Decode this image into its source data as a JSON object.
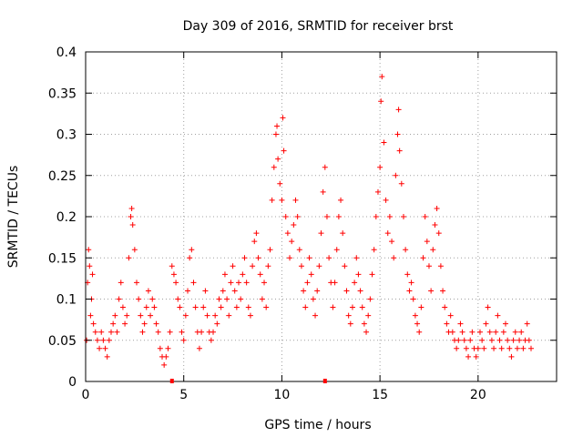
{
  "chart_data": {
    "type": "scatter",
    "title": "Day 309 of 2016, SRMTID for receiver brst",
    "xlabel": "GPS time / hours",
    "ylabel": "SRMTID / TECUs",
    "xlim": [
      0,
      24
    ],
    "ylim": [
      0,
      0.4
    ],
    "xticks": [
      0,
      5,
      10,
      15,
      20
    ],
    "xtick_labels": [
      "0",
      "5",
      "10",
      "15",
      "20"
    ],
    "yticks": [
      0,
      0.05,
      0.1,
      0.15,
      0.2,
      0.25,
      0.3,
      0.35,
      0.4
    ],
    "ytick_labels": [
      "0",
      "0.05",
      "0.1",
      "0.15",
      "0.2",
      "0.25",
      "0.3",
      "0.35",
      "0.4"
    ],
    "grid": true,
    "marker": "+",
    "colors": {
      "points": "#ff0000",
      "axis": "#000000",
      "grid": "#a0a0a0"
    },
    "series": [
      {
        "name": "SRMTID",
        "points": [
          [
            0.05,
            0.05
          ],
          [
            0.1,
            0.12
          ],
          [
            0.15,
            0.16
          ],
          [
            0.2,
            0.14
          ],
          [
            0.25,
            0.08
          ],
          [
            0.3,
            0.1
          ],
          [
            0.35,
            0.13
          ],
          [
            0.4,
            0.07
          ],
          [
            0.5,
            0.06
          ],
          [
            0.6,
            0.05
          ],
          [
            0.7,
            0.04
          ],
          [
            0.8,
            0.06
          ],
          [
            0.9,
            0.05
          ],
          [
            1.0,
            0.04
          ],
          [
            1.1,
            0.03
          ],
          [
            1.2,
            0.05
          ],
          [
            1.3,
            0.06
          ],
          [
            1.4,
            0.07
          ],
          [
            1.5,
            0.08
          ],
          [
            1.6,
            0.06
          ],
          [
            1.7,
            0.1
          ],
          [
            1.8,
            0.12
          ],
          [
            1.9,
            0.09
          ],
          [
            2.0,
            0.07
          ],
          [
            2.1,
            0.08
          ],
          [
            2.2,
            0.15
          ],
          [
            2.3,
            0.2
          ],
          [
            2.35,
            0.21
          ],
          [
            2.4,
            0.19
          ],
          [
            2.5,
            0.16
          ],
          [
            2.6,
            0.12
          ],
          [
            2.7,
            0.1
          ],
          [
            2.8,
            0.08
          ],
          [
            2.9,
            0.06
          ],
          [
            3.0,
            0.07
          ],
          [
            3.1,
            0.09
          ],
          [
            3.2,
            0.11
          ],
          [
            3.3,
            0.08
          ],
          [
            3.4,
            0.1
          ],
          [
            3.5,
            0.09
          ],
          [
            3.6,
            0.07
          ],
          [
            3.7,
            0.06
          ],
          [
            3.8,
            0.04
          ],
          [
            3.9,
            0.03
          ],
          [
            4.0,
            0.02
          ],
          [
            4.1,
            0.03
          ],
          [
            4.2,
            0.04
          ],
          [
            4.3,
            0.06
          ],
          [
            4.4,
            0.14
          ],
          [
            4.5,
            0.13
          ],
          [
            4.6,
            0.12
          ],
          [
            4.7,
            0.1
          ],
          [
            4.8,
            0.09
          ],
          [
            4.9,
            0.06
          ],
          [
            5.0,
            0.05
          ],
          [
            5.1,
            0.08
          ],
          [
            5.2,
            0.11
          ],
          [
            5.3,
            0.15
          ],
          [
            5.4,
            0.16
          ],
          [
            5.5,
            0.12
          ],
          [
            5.6,
            0.09
          ],
          [
            5.7,
            0.06
          ],
          [
            5.8,
            0.04
          ],
          [
            5.9,
            0.06
          ],
          [
            6.0,
            0.09
          ],
          [
            6.1,
            0.11
          ],
          [
            6.2,
            0.08
          ],
          [
            6.3,
            0.06
          ],
          [
            6.4,
            0.05
          ],
          [
            6.5,
            0.06
          ],
          [
            6.6,
            0.08
          ],
          [
            6.7,
            0.07
          ],
          [
            6.8,
            0.1
          ],
          [
            6.9,
            0.09
          ],
          [
            7.0,
            0.11
          ],
          [
            7.1,
            0.13
          ],
          [
            7.2,
            0.1
          ],
          [
            7.3,
            0.08
          ],
          [
            7.4,
            0.12
          ],
          [
            7.5,
            0.14
          ],
          [
            7.6,
            0.11
          ],
          [
            7.7,
            0.09
          ],
          [
            7.8,
            0.12
          ],
          [
            7.9,
            0.1
          ],
          [
            8.0,
            0.13
          ],
          [
            8.1,
            0.15
          ],
          [
            8.2,
            0.12
          ],
          [
            8.3,
            0.09
          ],
          [
            8.4,
            0.08
          ],
          [
            8.5,
            0.14
          ],
          [
            8.6,
            0.17
          ],
          [
            8.7,
            0.18
          ],
          [
            8.8,
            0.15
          ],
          [
            8.9,
            0.13
          ],
          [
            9.0,
            0.1
          ],
          [
            9.1,
            0.12
          ],
          [
            9.2,
            0.09
          ],
          [
            9.3,
            0.14
          ],
          [
            9.4,
            0.16
          ],
          [
            9.5,
            0.22
          ],
          [
            9.6,
            0.26
          ],
          [
            9.7,
            0.3
          ],
          [
            9.75,
            0.31
          ],
          [
            9.8,
            0.27
          ],
          [
            9.9,
            0.24
          ],
          [
            10.0,
            0.22
          ],
          [
            10.05,
            0.32
          ],
          [
            10.1,
            0.28
          ],
          [
            10.2,
            0.2
          ],
          [
            10.3,
            0.18
          ],
          [
            10.4,
            0.15
          ],
          [
            10.5,
            0.17
          ],
          [
            10.6,
            0.19
          ],
          [
            10.7,
            0.22
          ],
          [
            10.8,
            0.2
          ],
          [
            10.9,
            0.16
          ],
          [
            11.0,
            0.14
          ],
          [
            11.1,
            0.11
          ],
          [
            11.2,
            0.09
          ],
          [
            11.3,
            0.12
          ],
          [
            11.4,
            0.15
          ],
          [
            11.5,
            0.13
          ],
          [
            11.6,
            0.1
          ],
          [
            11.7,
            0.08
          ],
          [
            11.8,
            0.11
          ],
          [
            11.9,
            0.14
          ],
          [
            12.0,
            0.18
          ],
          [
            12.1,
            0.23
          ],
          [
            12.2,
            0.26
          ],
          [
            12.3,
            0.2
          ],
          [
            12.4,
            0.15
          ],
          [
            12.5,
            0.12
          ],
          [
            12.6,
            0.09
          ],
          [
            12.7,
            0.12
          ],
          [
            12.8,
            0.16
          ],
          [
            12.9,
            0.2
          ],
          [
            13.0,
            0.22
          ],
          [
            13.1,
            0.18
          ],
          [
            13.2,
            0.14
          ],
          [
            13.3,
            0.11
          ],
          [
            13.4,
            0.08
          ],
          [
            13.5,
            0.07
          ],
          [
            13.6,
            0.09
          ],
          [
            13.7,
            0.12
          ],
          [
            13.8,
            0.15
          ],
          [
            13.9,
            0.13
          ],
          [
            14.0,
            0.11
          ],
          [
            14.1,
            0.09
          ],
          [
            14.2,
            0.07
          ],
          [
            14.3,
            0.06
          ],
          [
            14.4,
            0.08
          ],
          [
            14.5,
            0.1
          ],
          [
            14.6,
            0.13
          ],
          [
            14.7,
            0.16
          ],
          [
            14.8,
            0.2
          ],
          [
            14.9,
            0.23
          ],
          [
            15.0,
            0.26
          ],
          [
            15.05,
            0.34
          ],
          [
            15.1,
            0.37
          ],
          [
            15.2,
            0.29
          ],
          [
            15.3,
            0.22
          ],
          [
            15.4,
            0.18
          ],
          [
            15.5,
            0.2
          ],
          [
            15.6,
            0.17
          ],
          [
            15.7,
            0.15
          ],
          [
            15.8,
            0.25
          ],
          [
            15.9,
            0.3
          ],
          [
            15.95,
            0.33
          ],
          [
            16.0,
            0.28
          ],
          [
            16.1,
            0.24
          ],
          [
            16.2,
            0.2
          ],
          [
            16.3,
            0.16
          ],
          [
            16.4,
            0.13
          ],
          [
            16.5,
            0.11
          ],
          [
            16.6,
            0.12
          ],
          [
            16.7,
            0.1
          ],
          [
            16.8,
            0.08
          ],
          [
            16.9,
            0.07
          ],
          [
            17.0,
            0.06
          ],
          [
            17.1,
            0.09
          ],
          [
            17.2,
            0.15
          ],
          [
            17.3,
            0.2
          ],
          [
            17.4,
            0.17
          ],
          [
            17.5,
            0.14
          ],
          [
            17.6,
            0.11
          ],
          [
            17.7,
            0.16
          ],
          [
            17.8,
            0.19
          ],
          [
            17.9,
            0.21
          ],
          [
            18.0,
            0.18
          ],
          [
            18.1,
            0.14
          ],
          [
            18.2,
            0.11
          ],
          [
            18.3,
            0.09
          ],
          [
            18.4,
            0.07
          ],
          [
            18.5,
            0.06
          ],
          [
            18.6,
            0.08
          ],
          [
            18.7,
            0.06
          ],
          [
            18.8,
            0.05
          ],
          [
            18.9,
            0.04
          ],
          [
            19.0,
            0.05
          ],
          [
            19.1,
            0.07
          ],
          [
            19.2,
            0.06
          ],
          [
            19.3,
            0.05
          ],
          [
            19.4,
            0.04
          ],
          [
            19.5,
            0.03
          ],
          [
            19.6,
            0.05
          ],
          [
            19.7,
            0.06
          ],
          [
            19.8,
            0.04
          ],
          [
            19.9,
            0.03
          ],
          [
            20.0,
            0.04
          ],
          [
            20.1,
            0.06
          ],
          [
            20.2,
            0.05
          ],
          [
            20.3,
            0.04
          ],
          [
            20.4,
            0.07
          ],
          [
            20.5,
            0.09
          ],
          [
            20.6,
            0.06
          ],
          [
            20.7,
            0.05
          ],
          [
            20.8,
            0.04
          ],
          [
            20.9,
            0.06
          ],
          [
            21.0,
            0.08
          ],
          [
            21.1,
            0.05
          ],
          [
            21.2,
            0.04
          ],
          [
            21.3,
            0.06
          ],
          [
            21.4,
            0.07
          ],
          [
            21.5,
            0.05
          ],
          [
            21.6,
            0.04
          ],
          [
            21.7,
            0.03
          ],
          [
            21.8,
            0.05
          ],
          [
            21.9,
            0.06
          ],
          [
            22.0,
            0.04
          ],
          [
            22.1,
            0.05
          ],
          [
            22.2,
            0.06
          ],
          [
            22.3,
            0.04
          ],
          [
            22.4,
            0.05
          ],
          [
            22.5,
            0.07
          ],
          [
            22.6,
            0.05
          ],
          [
            22.7,
            0.04
          ]
        ]
      }
    ],
    "axis_markers": [
      {
        "x": 4.4,
        "y": 0
      },
      {
        "x": 12.2,
        "y": 0
      }
    ]
  }
}
